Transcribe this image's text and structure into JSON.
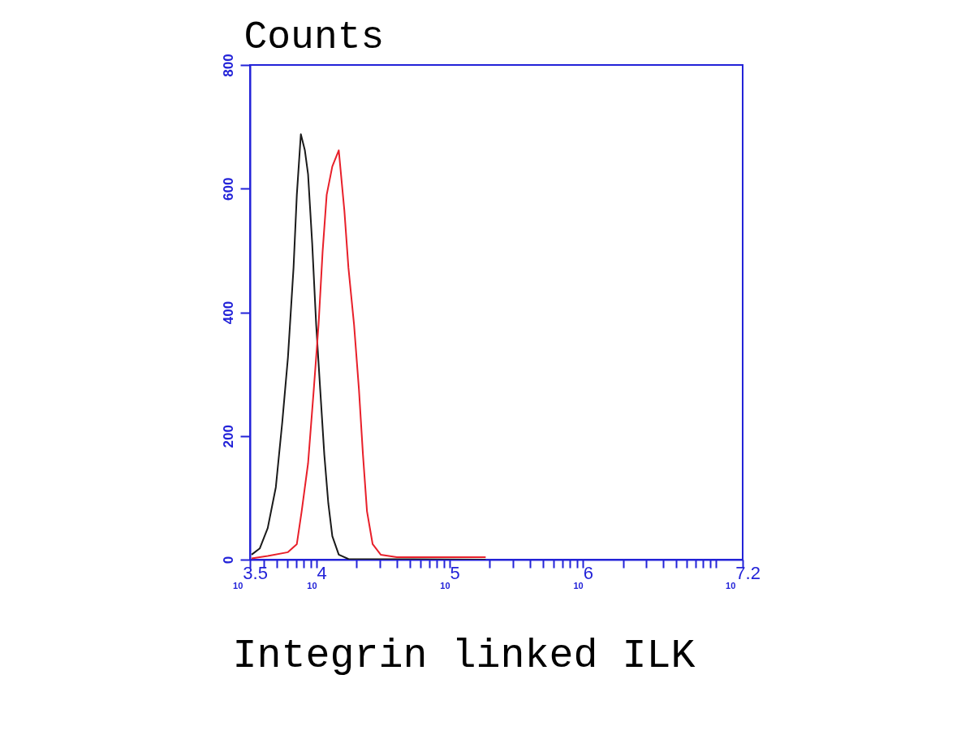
{
  "chart_data": {
    "type": "line",
    "xlabel": "Integrin linked ILK",
    "ylabel": "Counts",
    "log": "x",
    "grid": false,
    "xlim": [
      3162.3,
      15848932
    ],
    "ylim": [
      0,
      800
    ],
    "yticks": [
      0,
      200,
      400,
      600,
      800
    ],
    "xticks": [
      {
        "value": 3162.3,
        "label": "10$^{3.5}$"
      },
      {
        "value": 4000,
        "label": null
      },
      {
        "value": 5000,
        "label": null
      },
      {
        "value": 6000,
        "label": null
      },
      {
        "value": 7000,
        "label": null
      },
      {
        "value": 8000,
        "label": null
      },
      {
        "value": 9000,
        "label": null
      },
      {
        "value": 10000,
        "label": "10$^{4}$"
      },
      {
        "value": 20000,
        "label": null
      },
      {
        "value": 30000,
        "label": null
      },
      {
        "value": 40000,
        "label": null
      },
      {
        "value": 50000,
        "label": null
      },
      {
        "value": 60000,
        "label": null
      },
      {
        "value": 70000,
        "label": null
      },
      {
        "value": 80000,
        "label": null
      },
      {
        "value": 90000,
        "label": null
      },
      {
        "value": 100000,
        "label": "10$^{5}$"
      },
      {
        "value": 200000,
        "label": null
      },
      {
        "value": 300000,
        "label": null
      },
      {
        "value": 400000,
        "label": null
      },
      {
        "value": 500000,
        "label": null
      },
      {
        "value": 600000,
        "label": null
      },
      {
        "value": 700000,
        "label": null
      },
      {
        "value": 800000,
        "label": null
      },
      {
        "value": 900000,
        "label": null
      },
      {
        "value": 1000000,
        "label": "10$^{6}$"
      },
      {
        "value": 2000000,
        "label": null
      },
      {
        "value": 3000000,
        "label": null
      },
      {
        "value": 4000000,
        "label": null
      },
      {
        "value": 5000000,
        "label": null
      },
      {
        "value": 6000000,
        "label": null
      },
      {
        "value": 7000000,
        "label": null
      },
      {
        "value": 8000000,
        "label": null
      },
      {
        "value": 9000000,
        "label": null
      },
      {
        "value": 10000000,
        "label": null
      },
      {
        "value": 15848932,
        "label": "10$^{7.2}$"
      }
    ],
    "series": [
      {
        "color": "#1a1a1a",
        "x": [
          3251,
          3741,
          4297,
          4943,
          5524,
          6095,
          6714,
          7108,
          7620,
          8168,
          8635,
          9268,
          9931,
          10650,
          11430,
          12250,
          13130,
          14680,
          17350,
          186200
        ],
        "values": [
          8,
          18,
          51,
          117,
          222,
          327,
          472,
          590,
          688,
          662,
          623,
          512,
          380,
          275,
          170,
          91,
          38,
          8,
          1,
          0
        ]
      },
      {
        "color": "#e8202a",
        "x": [
          3251,
          4297,
          6095,
          7108,
          7727,
          8635,
          9528,
          10350,
          11100,
          11910,
          13130,
          14680,
          16180,
          17350,
          19120,
          20810,
          22300,
          23920,
          26370,
          30320,
          40110,
          186200
        ],
        "values": [
          2,
          6,
          12,
          25,
          78,
          156,
          275,
          380,
          498,
          590,
          636,
          662,
          564,
          472,
          380,
          275,
          170,
          78,
          25,
          8,
          4,
          4
        ]
      }
    ]
  }
}
